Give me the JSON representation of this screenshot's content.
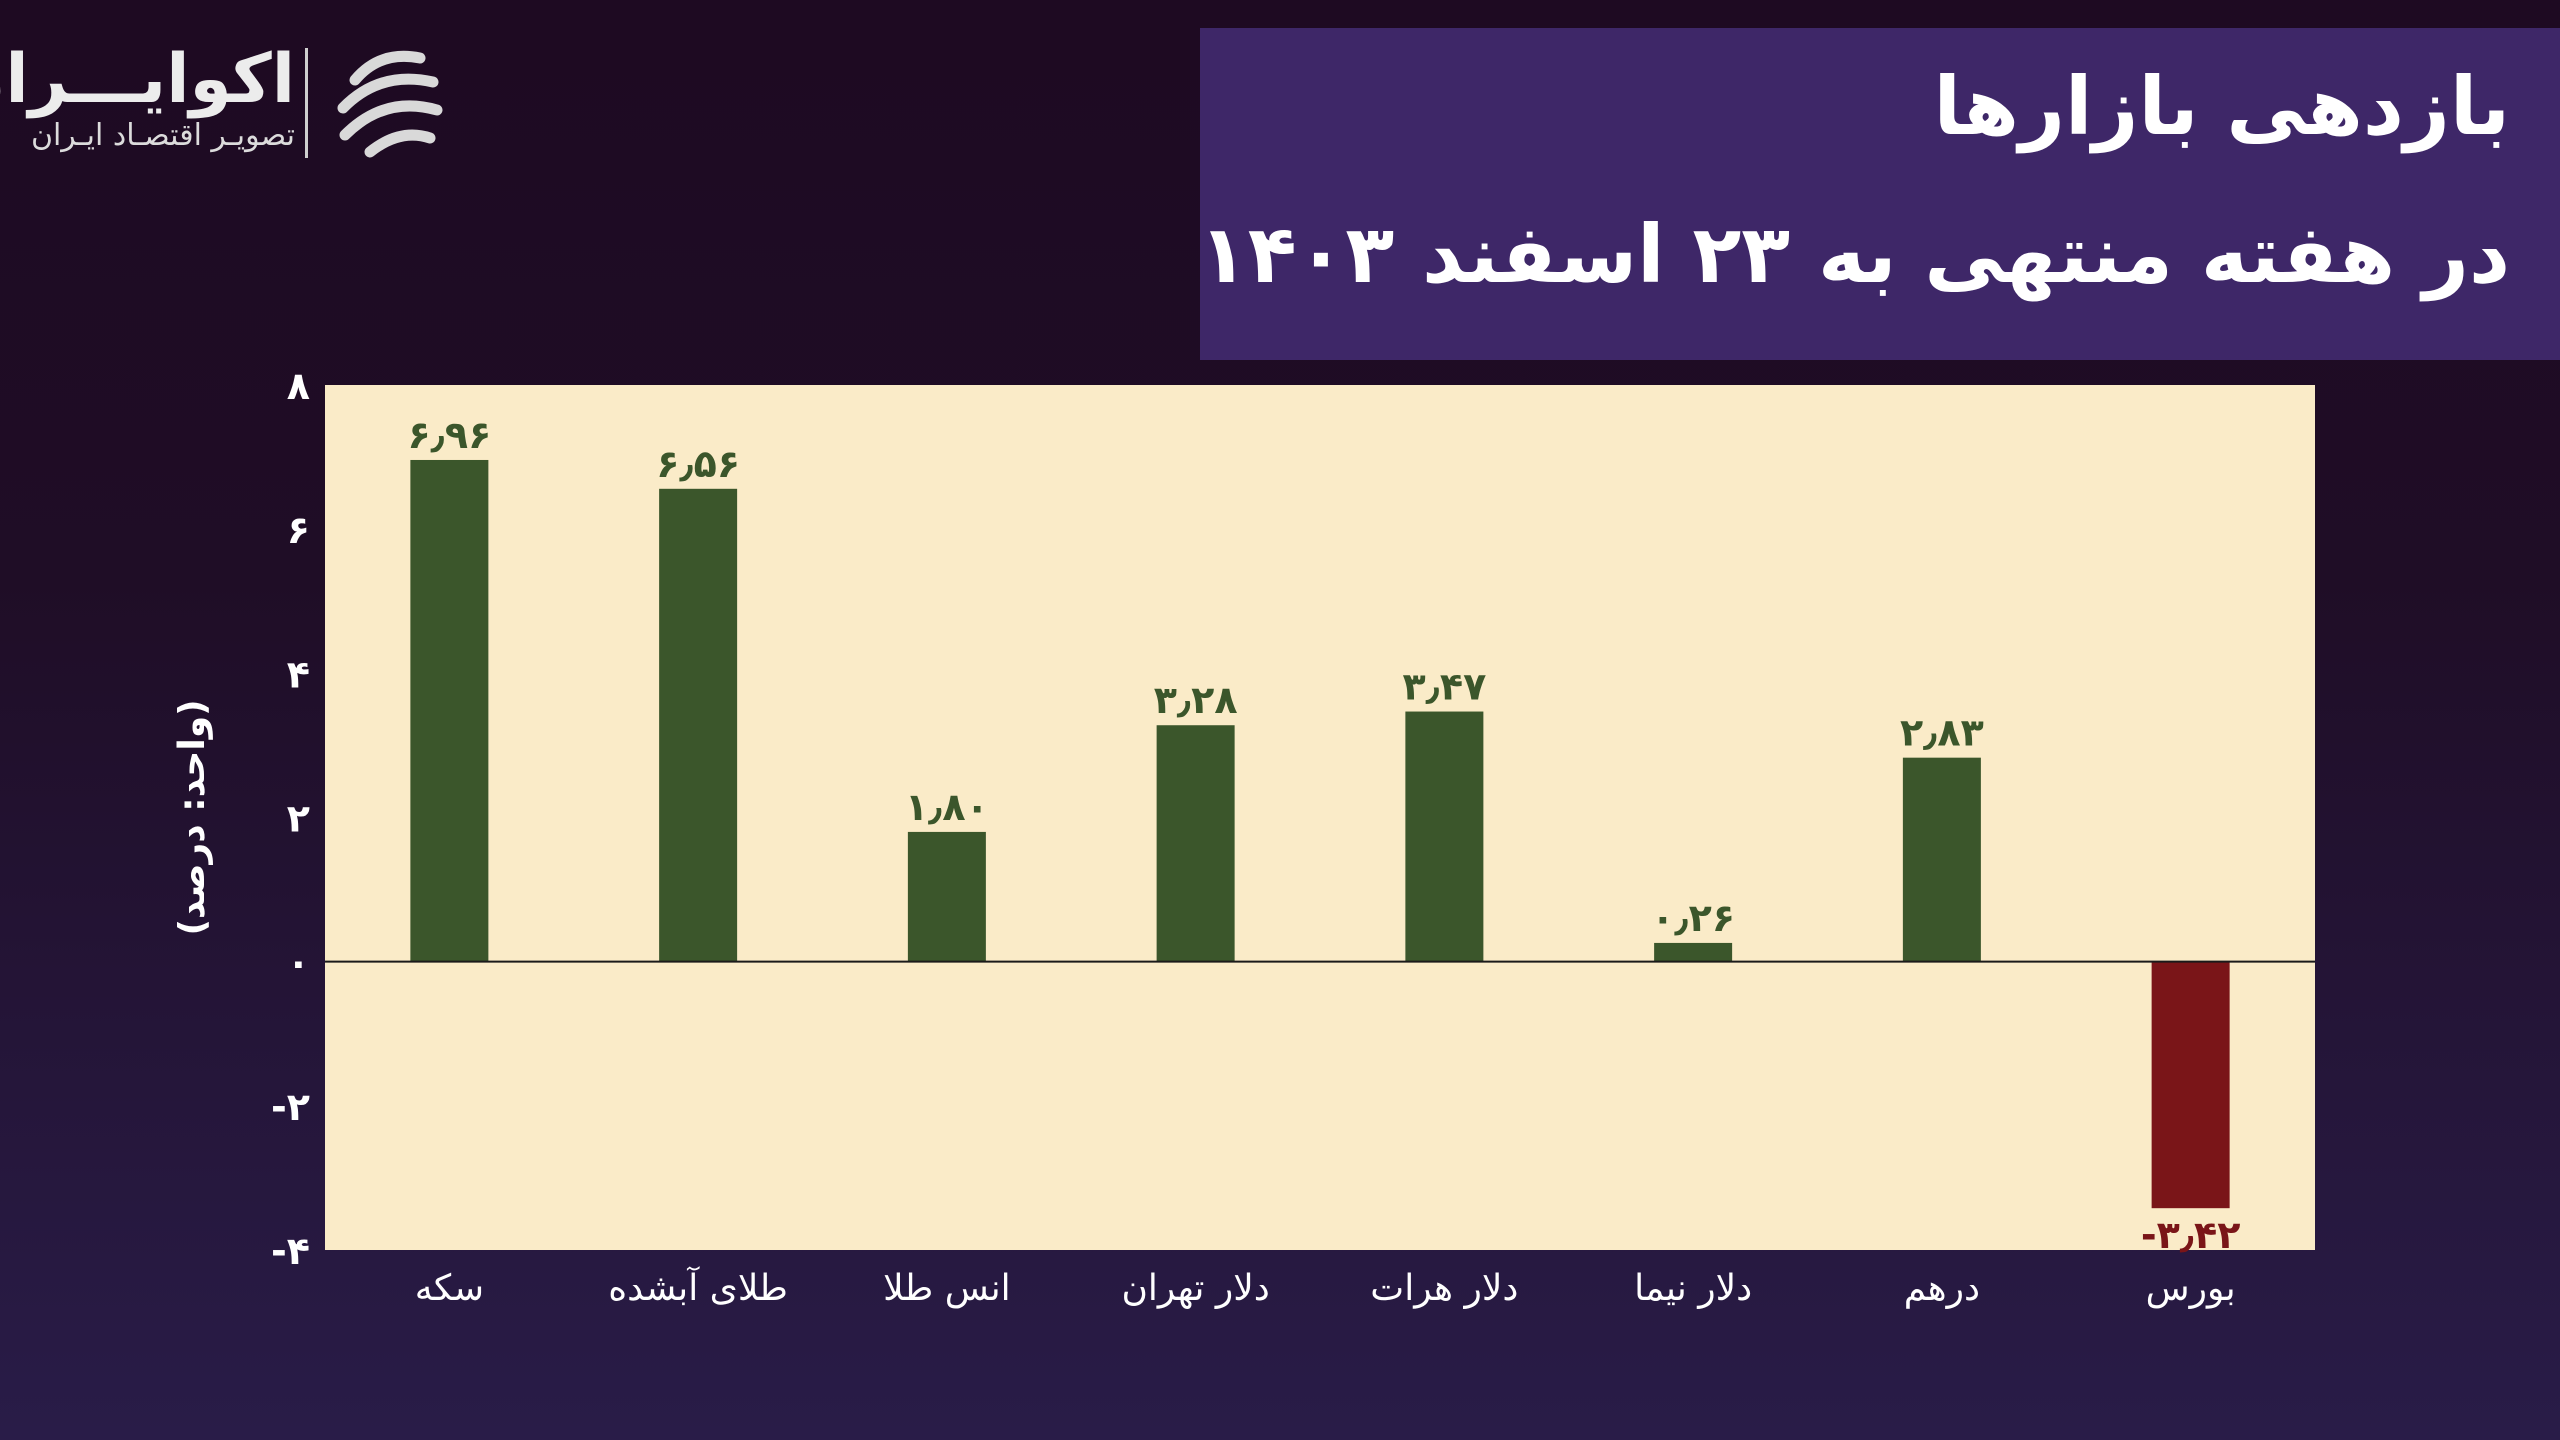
{
  "brand": {
    "name": "اکوایـــران",
    "tagline": "تصویـر اقتصـاد ایـران"
  },
  "title": {
    "line1": "بازدهی بازارها",
    "line2": "در هفته منتهی به ۲۳ اسفند ۱۴۰۳"
  },
  "colors": {
    "positive": "#3b562b",
    "negative": "#7a1518",
    "plot_bg": "#faebc8",
    "title_bg": "#3e2768",
    "tick_text": "#ffffff",
    "value_text_positive": "#3b562b",
    "value_text_negative": "#7a1518"
  },
  "chart_data": {
    "type": "bar",
    "title": "",
    "ylabel": "(واحد: درصد)",
    "xlabel": "",
    "ylim": [
      -4,
      8
    ],
    "yticks": [
      -4,
      -2,
      0,
      2,
      4,
      6,
      8
    ],
    "ytick_labels": [
      "-۴",
      "-۲",
      "۰",
      "۲",
      "۴",
      "۶",
      "۸"
    ],
    "grid": false,
    "categories": [
      "سکه",
      "طلای آبشده",
      "انس طلا",
      "دلار تهران",
      "دلار هرات",
      "دلار نیما",
      "درهم",
      "بورس"
    ],
    "values": [
      6.96,
      6.56,
      1.8,
      3.28,
      3.47,
      0.26,
      2.83,
      -3.42
    ],
    "value_labels": [
      "۶٫۹۶",
      "۶٫۵۶",
      "۱٫۸۰",
      "۳٫۲۸",
      "۳٫۴۷",
      "۰٫۲۶",
      "۲٫۸۳",
      "-۳٫۴۲"
    ]
  }
}
